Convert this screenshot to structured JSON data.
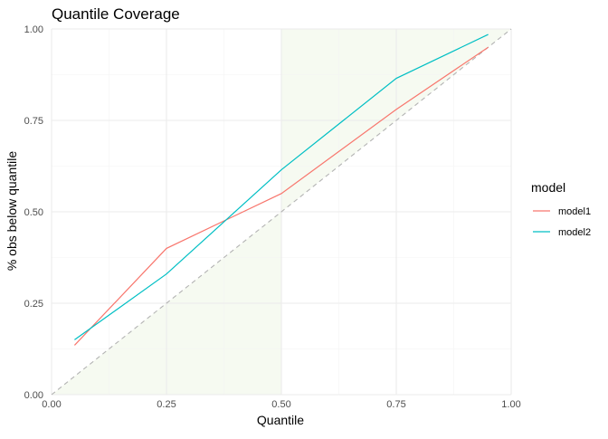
{
  "chart_data": {
    "type": "line",
    "title": "Quantile Coverage",
    "xlabel": "Quantile",
    "ylabel": "% obs below quantile",
    "xlim": [
      0,
      1
    ],
    "ylim": [
      0,
      1
    ],
    "x_ticks": [
      "0.00",
      "0.25",
      "0.50",
      "0.75",
      "1.00"
    ],
    "y_ticks": [
      "0.00",
      "0.25",
      "0.50",
      "0.75",
      "1.00"
    ],
    "grid": true,
    "legend_placement": "right",
    "legend_title": "model",
    "shaded_regions": [
      {
        "x0": 0,
        "x1": 0.5,
        "y0": 0,
        "y1": 0.5,
        "shape": "triangle-below-diagonal",
        "color": "#f6faf1"
      },
      {
        "x0": 0.5,
        "x1": 1,
        "y0": 0.5,
        "y1": 1,
        "shape": "triangle-above-diagonal",
        "color": "#f6faf1"
      }
    ],
    "reference_line": {
      "type": "identity",
      "style": "dashed",
      "color": "#b3b3b3"
    },
    "x": [
      0.05,
      0.25,
      0.5,
      0.75,
      0.95
    ],
    "series": [
      {
        "name": "model1",
        "color": "#F8766D",
        "values": [
          0.135,
          0.4,
          0.55,
          0.78,
          0.95
        ]
      },
      {
        "name": "model2",
        "color": "#00BFC4",
        "values": [
          0.15,
          0.33,
          0.615,
          0.865,
          0.985
        ]
      }
    ]
  }
}
